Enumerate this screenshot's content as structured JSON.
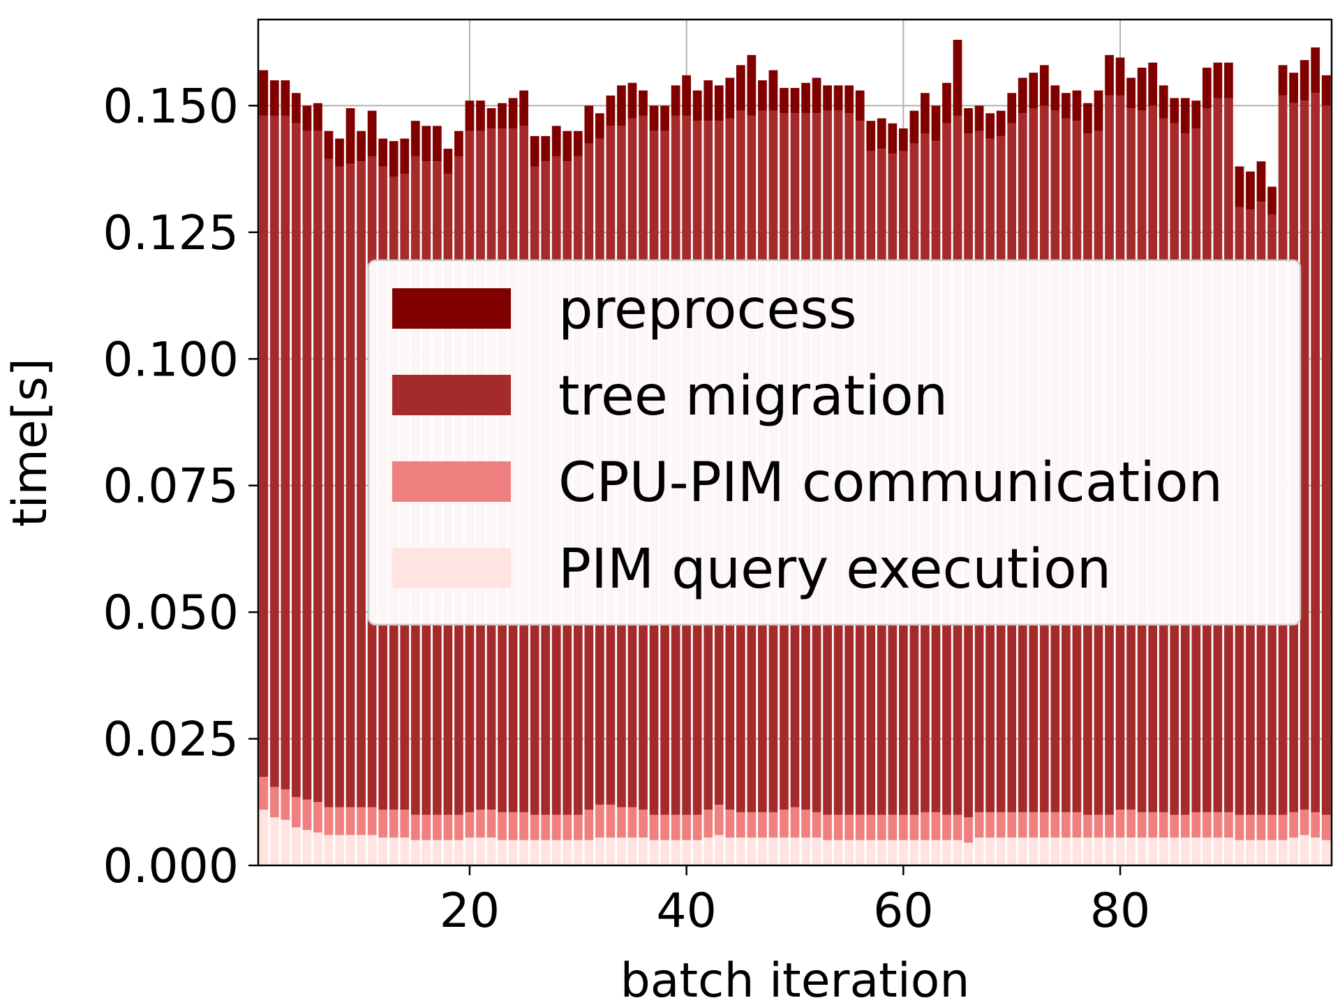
{
  "chart_data": {
    "type": "bar",
    "stacked": true,
    "xlabel": "batch iteration",
    "ylabel": "time[s]",
    "xlim": [
      0.5,
      99.5
    ],
    "ylim": [
      0,
      0.167
    ],
    "x_ticks": [
      20,
      40,
      60,
      80
    ],
    "y_ticks": [
      0.0,
      0.025,
      0.05,
      0.075,
      0.1,
      0.125,
      0.15
    ],
    "y_tick_labels": [
      "0.000",
      "0.025",
      "0.050",
      "0.075",
      "0.100",
      "0.125",
      "0.150"
    ],
    "grid": true,
    "legend_position": "center",
    "x": [
      1,
      2,
      3,
      4,
      5,
      6,
      7,
      8,
      9,
      10,
      11,
      12,
      13,
      14,
      15,
      16,
      17,
      18,
      19,
      20,
      21,
      22,
      23,
      24,
      25,
      26,
      27,
      28,
      29,
      30,
      31,
      32,
      33,
      34,
      35,
      36,
      37,
      38,
      39,
      40,
      41,
      42,
      43,
      44,
      45,
      46,
      47,
      48,
      49,
      50,
      51,
      52,
      53,
      54,
      55,
      56,
      57,
      58,
      59,
      60,
      61,
      62,
      63,
      64,
      65,
      66,
      67,
      68,
      69,
      70,
      71,
      72,
      73,
      74,
      75,
      76,
      77,
      78,
      79,
      80,
      81,
      82,
      83,
      84,
      85,
      86,
      87,
      88,
      89,
      90,
      91,
      92,
      93,
      94,
      95,
      96,
      97,
      98,
      99
    ],
    "series": [
      {
        "name": "PIM query execution",
        "color": "#ffe4e1",
        "values": [
          0.011,
          0.0095,
          0.009,
          0.0075,
          0.007,
          0.0065,
          0.006,
          0.006,
          0.006,
          0.006,
          0.006,
          0.0055,
          0.0055,
          0.0055,
          0.005,
          0.005,
          0.005,
          0.005,
          0.005,
          0.0055,
          0.0055,
          0.0055,
          0.005,
          0.005,
          0.005,
          0.005,
          0.005,
          0.005,
          0.005,
          0.005,
          0.005,
          0.0055,
          0.0055,
          0.0055,
          0.0055,
          0.0055,
          0.005,
          0.005,
          0.005,
          0.005,
          0.005,
          0.0055,
          0.006,
          0.0055,
          0.0055,
          0.0055,
          0.0055,
          0.0055,
          0.0055,
          0.0055,
          0.0055,
          0.0055,
          0.005,
          0.005,
          0.005,
          0.005,
          0.005,
          0.005,
          0.005,
          0.005,
          0.005,
          0.005,
          0.005,
          0.005,
          0.005,
          0.0045,
          0.0055,
          0.0055,
          0.0055,
          0.0055,
          0.0055,
          0.0055,
          0.0055,
          0.0055,
          0.0055,
          0.0055,
          0.0055,
          0.0055,
          0.0055,
          0.0055,
          0.0055,
          0.0055,
          0.0055,
          0.0055,
          0.0055,
          0.0055,
          0.0055,
          0.0055,
          0.0055,
          0.0055,
          0.005,
          0.005,
          0.005,
          0.005,
          0.005,
          0.0055,
          0.006,
          0.0055,
          0.005
        ]
      },
      {
        "name": "CPU-PIM communication",
        "color": "#f08080",
        "values": [
          0.0065,
          0.006,
          0.006,
          0.006,
          0.006,
          0.006,
          0.0055,
          0.0055,
          0.0055,
          0.0055,
          0.0055,
          0.0055,
          0.0055,
          0.0055,
          0.005,
          0.005,
          0.005,
          0.005,
          0.005,
          0.005,
          0.0055,
          0.0055,
          0.0055,
          0.0055,
          0.0055,
          0.005,
          0.005,
          0.005,
          0.005,
          0.005,
          0.006,
          0.0065,
          0.0065,
          0.006,
          0.006,
          0.0055,
          0.005,
          0.005,
          0.005,
          0.005,
          0.005,
          0.0055,
          0.006,
          0.0055,
          0.005,
          0.005,
          0.005,
          0.005,
          0.0055,
          0.006,
          0.0055,
          0.005,
          0.005,
          0.005,
          0.005,
          0.005,
          0.005,
          0.005,
          0.005,
          0.005,
          0.005,
          0.0055,
          0.0055,
          0.005,
          0.005,
          0.005,
          0.005,
          0.005,
          0.005,
          0.005,
          0.005,
          0.005,
          0.005,
          0.005,
          0.005,
          0.005,
          0.0045,
          0.0045,
          0.0045,
          0.0055,
          0.0055,
          0.005,
          0.005,
          0.005,
          0.0045,
          0.0045,
          0.005,
          0.005,
          0.005,
          0.005,
          0.005,
          0.005,
          0.005,
          0.005,
          0.005,
          0.005,
          0.005,
          0.005,
          0.005
        ]
      },
      {
        "name": "tree migration",
        "color": "#a52a2a",
        "values": [
          0.1305,
          0.1325,
          0.133,
          0.133,
          0.132,
          0.1325,
          0.128,
          0.1265,
          0.127,
          0.1275,
          0.1285,
          0.127,
          0.125,
          0.1255,
          0.13,
          0.129,
          0.129,
          0.1265,
          0.13,
          0.1345,
          0.134,
          0.1345,
          0.135,
          0.135,
          0.1355,
          0.128,
          0.129,
          0.13,
          0.129,
          0.13,
          0.1315,
          0.1315,
          0.134,
          0.1345,
          0.136,
          0.137,
          0.135,
          0.135,
          0.138,
          0.138,
          0.137,
          0.136,
          0.135,
          0.1365,
          0.1385,
          0.1375,
          0.1385,
          0.1385,
          0.1375,
          0.137,
          0.1375,
          0.138,
          0.139,
          0.139,
          0.1385,
          0.137,
          0.131,
          0.1315,
          0.1305,
          0.131,
          0.1325,
          0.134,
          0.1325,
          0.1365,
          0.138,
          0.135,
          0.1345,
          0.133,
          0.1335,
          0.136,
          0.138,
          0.139,
          0.1395,
          0.1385,
          0.137,
          0.1365,
          0.1345,
          0.135,
          0.142,
          0.141,
          0.1385,
          0.1385,
          0.1395,
          0.137,
          0.1365,
          0.1345,
          0.135,
          0.139,
          0.141,
          0.141,
          0.12,
          0.1195,
          0.121,
          0.1185,
          0.142,
          0.14,
          0.14,
          0.142,
          0.14
        ]
      },
      {
        "name": "preprocess",
        "color": "#800000",
        "values": [
          0.009,
          0.007,
          0.007,
          0.006,
          0.005,
          0.0055,
          0.0055,
          0.0055,
          0.011,
          0.006,
          0.009,
          0.0055,
          0.007,
          0.007,
          0.007,
          0.007,
          0.007,
          0.005,
          0.005,
          0.006,
          0.006,
          0.004,
          0.005,
          0.006,
          0.007,
          0.006,
          0.005,
          0.006,
          0.006,
          0.005,
          0.0075,
          0.005,
          0.006,
          0.008,
          0.007,
          0.005,
          0.005,
          0.005,
          0.006,
          0.008,
          0.006,
          0.008,
          0.007,
          0.008,
          0.009,
          0.012,
          0.006,
          0.008,
          0.005,
          0.005,
          0.006,
          0.007,
          0.005,
          0.005,
          0.0055,
          0.006,
          0.006,
          0.006,
          0.006,
          0.0045,
          0.0065,
          0.008,
          0.007,
          0.008,
          0.015,
          0.005,
          0.005,
          0.005,
          0.005,
          0.006,
          0.007,
          0.007,
          0.008,
          0.005,
          0.005,
          0.006,
          0.006,
          0.008,
          0.008,
          0.0075,
          0.006,
          0.0085,
          0.0085,
          0.0065,
          0.005,
          0.007,
          0.0055,
          0.008,
          0.007,
          0.007,
          0.008,
          0.0075,
          0.008,
          0.0055,
          0.006,
          0.006,
          0.008,
          0.009,
          0.006
        ]
      }
    ],
    "legend_order": [
      "preprocess",
      "tree migration",
      "CPU-PIM communication",
      "PIM query execution"
    ]
  }
}
